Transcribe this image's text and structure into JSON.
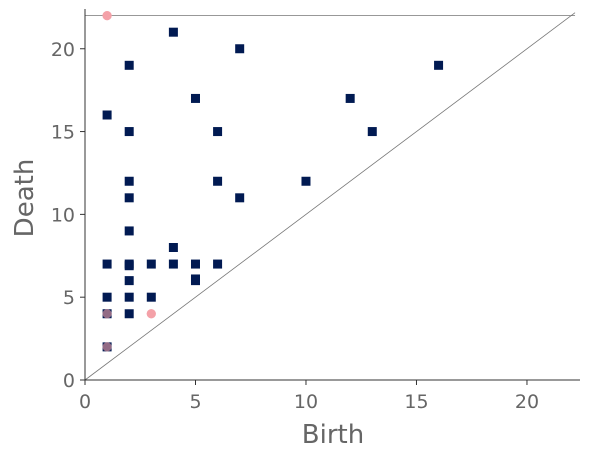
{
  "chart_data": {
    "type": "scatter",
    "title": "",
    "xlabel": "Birth",
    "ylabel": "Death",
    "xlim": [
      0,
      22.4
    ],
    "ylim": [
      0,
      22.4
    ],
    "xticks": [
      0,
      5,
      10,
      15,
      20
    ],
    "yticks": [
      0,
      5,
      10,
      15,
      20
    ],
    "grid": false,
    "legend": "none",
    "diagonal": true,
    "infinity_line_y": 22,
    "colors": {
      "square_series": "#011a52",
      "circle_series": "#f4a1a8",
      "guide_lines": "#777777",
      "axis_text": "#666666"
    },
    "series": [
      {
        "marker": "circle",
        "color": "#f4a1a8",
        "points": [
          [
            1,
            22
          ],
          [
            1,
            4
          ],
          [
            1,
            2
          ],
          [
            3,
            4
          ]
        ]
      },
      {
        "marker": "square",
        "color": "#011a52",
        "points": [
          [
            1,
            16
          ],
          [
            1,
            7
          ],
          [
            1,
            5
          ],
          [
            1,
            4
          ],
          [
            1,
            2
          ],
          [
            2,
            19
          ],
          [
            2,
            15
          ],
          [
            2,
            12
          ],
          [
            2,
            11
          ],
          [
            2,
            9
          ],
          [
            2,
            7
          ],
          [
            2,
            6.9
          ],
          [
            2,
            6
          ],
          [
            2,
            5
          ],
          [
            2,
            4
          ],
          [
            3,
            7
          ],
          [
            3,
            5
          ],
          [
            4,
            21
          ],
          [
            4,
            8
          ],
          [
            4,
            7
          ],
          [
            5,
            17
          ],
          [
            5,
            7
          ],
          [
            5,
            6.1
          ],
          [
            5,
            6
          ],
          [
            6,
            15
          ],
          [
            6,
            12
          ],
          [
            6,
            7
          ],
          [
            7,
            20
          ],
          [
            7,
            11
          ],
          [
            10,
            12
          ],
          [
            12,
            17
          ],
          [
            13,
            15
          ],
          [
            16,
            19
          ]
        ]
      }
    ]
  }
}
